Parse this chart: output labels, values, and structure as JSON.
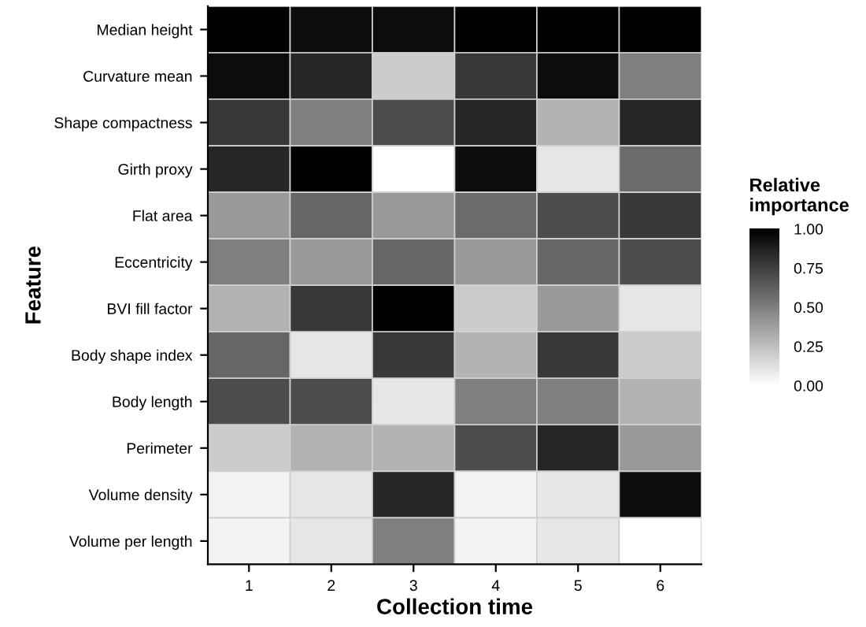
{
  "chart_data": {
    "type": "heatmap",
    "xlabel": "Collection time",
    "ylabel": "Feature",
    "clabel": "Relative\nimportance",
    "categories": [
      "1",
      "2",
      "3",
      "4",
      "5",
      "6"
    ],
    "y_categories": [
      "Median height",
      "Curvature mean",
      "Shape compactness",
      "Girth proxy",
      "Flat area",
      "Eccentricity",
      "BVI fill factor",
      "Body shape index",
      "Body length",
      "Perimeter",
      "Volume density",
      "Volume per length"
    ],
    "cells": [
      [
        1.0,
        0.95,
        0.95,
        1.0,
        1.0,
        1.0
      ],
      [
        0.95,
        0.85,
        0.2,
        0.78,
        0.95,
        0.5
      ],
      [
        0.78,
        0.5,
        0.7,
        0.85,
        0.3,
        0.85
      ],
      [
        0.85,
        1.0,
        0.0,
        0.95,
        0.1,
        0.58
      ],
      [
        0.4,
        0.6,
        0.4,
        0.58,
        0.7,
        0.78
      ],
      [
        0.5,
        0.4,
        0.6,
        0.4,
        0.6,
        0.7
      ],
      [
        0.3,
        0.78,
        1.0,
        0.2,
        0.4,
        0.1
      ],
      [
        0.6,
        0.1,
        0.78,
        0.3,
        0.78,
        0.2
      ],
      [
        0.7,
        0.7,
        0.1,
        0.5,
        0.5,
        0.3
      ],
      [
        0.2,
        0.3,
        0.3,
        0.7,
        0.85,
        0.4
      ],
      [
        0.05,
        0.1,
        0.85,
        0.05,
        0.1,
        0.95
      ],
      [
        0.05,
        0.1,
        0.5,
        0.05,
        0.1,
        0.0
      ]
    ],
    "clim": [
      0,
      1
    ],
    "cticks": [
      {
        "value": 0,
        "label": "0.00"
      },
      {
        "value": 0.25,
        "label": "0.25"
      },
      {
        "value": 0.5,
        "label": "0.50"
      },
      {
        "value": 0.75,
        "label": "0.75"
      },
      {
        "value": 1,
        "label": "1.00"
      }
    ]
  }
}
